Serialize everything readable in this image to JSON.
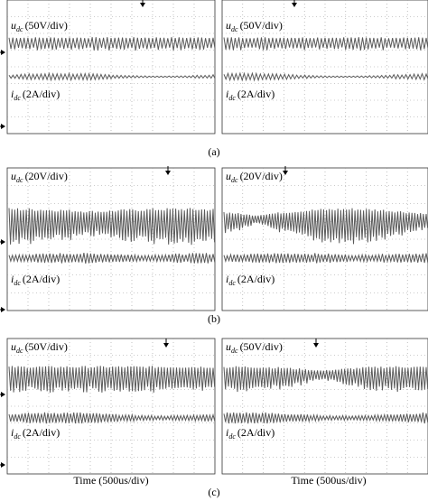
{
  "figure": {
    "rows": [
      {
        "caption": "(a)",
        "panels": [
          {
            "voltage_symbol": "u",
            "voltage_sub": "dc",
            "voltage_scale": "(50V/div)",
            "current_symbol": "i",
            "current_sub": "dc",
            "current_scale": "(2A/div)"
          },
          {
            "voltage_symbol": "u",
            "voltage_sub": "dc",
            "voltage_scale": "(50V/div)",
            "current_symbol": "i",
            "current_sub": "dc",
            "current_scale": "(2A/div)"
          }
        ]
      },
      {
        "caption": "(b)",
        "panels": [
          {
            "voltage_symbol": "u",
            "voltage_sub": "dc",
            "voltage_scale": "(20V/div)",
            "current_symbol": "i",
            "current_sub": "dc",
            "current_scale": "(2A/div)"
          },
          {
            "voltage_symbol": "u",
            "voltage_sub": "dc",
            "voltage_scale": "(20V/div)",
            "current_symbol": "i",
            "current_sub": "dc",
            "current_scale": "(2A/div)"
          }
        ]
      },
      {
        "caption": "(c)",
        "panels": [
          {
            "voltage_symbol": "u",
            "voltage_sub": "dc",
            "voltage_scale": "(50V/div)",
            "current_symbol": "i",
            "current_sub": "dc",
            "current_scale": "(2A/div)"
          },
          {
            "voltage_symbol": "u",
            "voltage_sub": "dc",
            "voltage_scale": "(50V/div)",
            "current_symbol": "i",
            "current_sub": "dc",
            "current_scale": "(2A/div)"
          }
        ]
      }
    ],
    "time_labels": [
      "Time (500us/div)",
      "Time (500us/div)"
    ]
  }
}
